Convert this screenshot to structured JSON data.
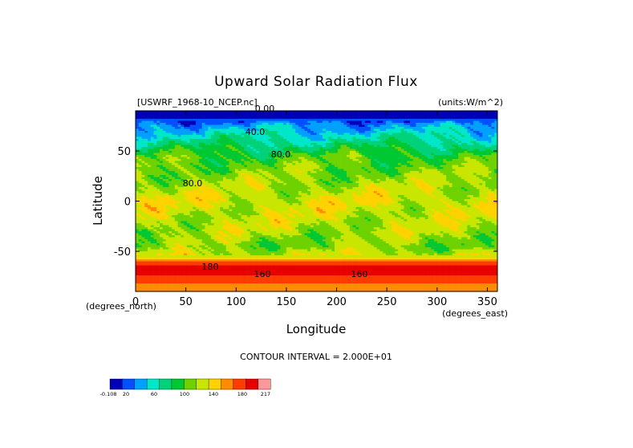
{
  "chart_data": {
    "type": "heatmap",
    "title": "Upward Solar Radiation Flux",
    "file_label": "[USWRF_1968-10_NCEP.nc]",
    "units_label": "(units:W/m^2)",
    "xlabel": "Longitude",
    "ylabel": "Latitude",
    "x_unit_label": "(degrees_east)",
    "y_unit_label": "(degrees_north)",
    "xlim": [
      0,
      360
    ],
    "ylim": [
      -90,
      90
    ],
    "x_ticks": [
      0,
      50,
      100,
      150,
      200,
      250,
      300,
      350
    ],
    "y_ticks": [
      50,
      0,
      -50
    ],
    "contour_interval_text": "CONTOUR INTERVAL = 2.000E+01",
    "contour_labels": [
      "0.00",
      "40.0",
      "80.0",
      "80.0",
      "180",
      "160",
      "160"
    ],
    "colorbar": {
      "ticks": [
        "-0.108",
        "20",
        "60",
        "100",
        "140",
        "180",
        "217"
      ],
      "colors": [
        "#0000b4",
        "#0050ff",
        "#00a0ff",
        "#00e6c8",
        "#00d27a",
        "#00c832",
        "#6ed200",
        "#c8e600",
        "#ffd200",
        "#ff8c00",
        "#ff3c00",
        "#e60000",
        "#ff9999"
      ]
    },
    "zonal_profile": [
      {
        "lat": 90,
        "value": 0
      },
      {
        "lat": 85,
        "value": 10
      },
      {
        "lat": 75,
        "value": 40
      },
      {
        "lat": 65,
        "value": 60
      },
      {
        "lat": 55,
        "value": 80
      },
      {
        "lat": 45,
        "value": 100
      },
      {
        "lat": 30,
        "value": 110
      },
      {
        "lat": 15,
        "value": 120
      },
      {
        "lat": 0,
        "value": 130
      },
      {
        "lat": -15,
        "value": 125
      },
      {
        "lat": -30,
        "value": 120
      },
      {
        "lat": -45,
        "value": 110
      },
      {
        "lat": -55,
        "value": 130
      },
      {
        "lat": -62,
        "value": 180
      },
      {
        "lat": -70,
        "value": 195
      },
      {
        "lat": -78,
        "value": 175
      },
      {
        "lat": -90,
        "value": 150
      }
    ]
  }
}
